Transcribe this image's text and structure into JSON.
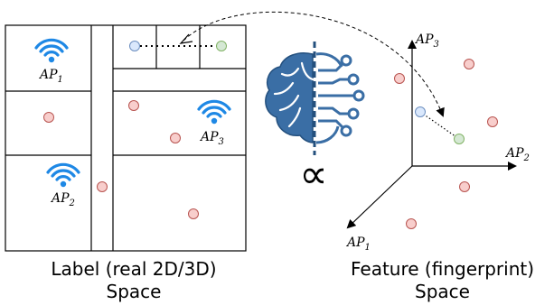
{
  "labels": {
    "ap1": "AP",
    "ap1_sub": "1",
    "ap2": "AP",
    "ap2_sub": "2",
    "ap3": "AP",
    "ap3_sub": "3",
    "axis_ap3": "AP",
    "axis_ap3_sub": "3",
    "axis_ap2": "AP",
    "axis_ap2_sub": "2",
    "axis_ap1": "AP",
    "axis_ap1_sub": "1",
    "proportional_symbol": "∝"
  },
  "captions": {
    "left_line1": "Label (real 2D/3D)",
    "left_line2": "Space",
    "right_line1": "Feature (fingerprint)",
    "right_line2": "Space"
  },
  "colors": {
    "wifi": "#1e88e5",
    "brain": "#3a6ea5",
    "red_dot_fill": "#f8cecc",
    "red_dot_stroke": "#b85450",
    "blue_dot_fill": "#dae8fc",
    "blue_dot_stroke": "#6c8ebf",
    "green_dot_fill": "#d5e8d4",
    "green_dot_stroke": "#82b366"
  },
  "icons": [
    "wifi-icon",
    "brain-circuit-icon"
  ]
}
